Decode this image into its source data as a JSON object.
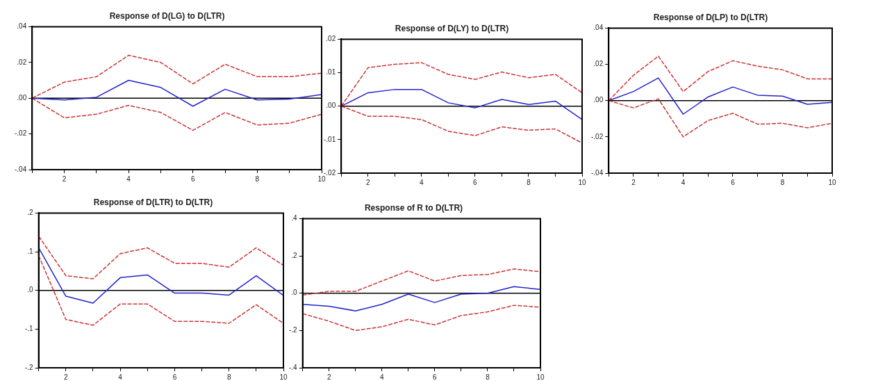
{
  "chart_data": [
    {
      "type": "line",
      "title": "Response of D(LG) to D(LTR)",
      "x": [
        1,
        2,
        3,
        4,
        5,
        6,
        7,
        8,
        9,
        10
      ],
      "xlim": [
        1,
        10
      ],
      "xticks": [
        {
          "value": 1,
          "label": null
        },
        2,
        {
          "value": 3,
          "label": null
        },
        4,
        {
          "value": 5,
          "label": null
        },
        6,
        {
          "value": 7,
          "label": null
        },
        8,
        {
          "value": 9,
          "label": null
        },
        10
      ],
      "ylim": [
        -0.04,
        0.04
      ],
      "yticks": [
        {
          "value": -0.04,
          "label": "-.04"
        },
        {
          "value": -0.02,
          "label": "-.02"
        },
        {
          "value": 0,
          "label": ".00"
        },
        {
          "value": 0.02,
          "label": ".02"
        },
        {
          "value": 0.04,
          "label": ".04"
        }
      ],
      "series": [
        {
          "color": "#cc3333",
          "line_style": "dashed",
          "values": [
            0,
            0.009,
            0.012,
            0.024,
            0.02,
            0.008,
            0.019,
            0.012,
            0.012,
            0.014
          ]
        },
        {
          "color": "#2222cc",
          "line_style": "solid",
          "values": [
            0,
            -0.001,
            0.0005,
            0.01,
            0.006,
            -0.0045,
            0.005,
            -0.001,
            -0.0005,
            0.002
          ]
        },
        {
          "color": "#cc3333",
          "line_style": "dashed",
          "values": [
            0,
            -0.011,
            -0.009,
            -0.004,
            -0.008,
            -0.018,
            -0.008,
            -0.015,
            -0.014,
            -0.009
          ]
        }
      ],
      "ref_lines": [
        {
          "axis": "y",
          "value": 0,
          "color": "#000000"
        }
      ],
      "grid": false,
      "legend": false,
      "marker": "none"
    },
    {
      "type": "line",
      "title": "Response of D(LY) to D(LTR)",
      "x": [
        1,
        2,
        3,
        4,
        5,
        6,
        7,
        8,
        9,
        10
      ],
      "xlim": [
        1,
        10
      ],
      "xticks": [
        {
          "value": 1,
          "label": null
        },
        2,
        {
          "value": 3,
          "label": null
        },
        4,
        {
          "value": 5,
          "label": null
        },
        6,
        {
          "value": 7,
          "label": null
        },
        8,
        {
          "value": 9,
          "label": null
        },
        10
      ],
      "ylim": [
        -0.02,
        0.02
      ],
      "yticks": [
        {
          "value": -0.02,
          "label": "-.02"
        },
        {
          "value": -0.01,
          "label": "-.01"
        },
        {
          "value": 0,
          "label": ".00"
        },
        {
          "value": 0.01,
          "label": ".01"
        },
        {
          "value": 0.02,
          "label": ".02"
        }
      ],
      "series": [
        {
          "color": "#cc3333",
          "line_style": "dashed",
          "values": [
            0,
            0.0115,
            0.0125,
            0.013,
            0.0095,
            0.008,
            0.0102,
            0.0085,
            0.0095,
            0.004
          ]
        },
        {
          "color": "#2222cc",
          "line_style": "solid",
          "values": [
            0,
            0.004,
            0.005,
            0.005,
            0.001,
            -0.0005,
            0.002,
            0.0005,
            0.0015,
            -0.004
          ]
        },
        {
          "color": "#cc3333",
          "line_style": "dashed",
          "values": [
            0,
            -0.003,
            -0.003,
            -0.004,
            -0.0075,
            -0.0088,
            -0.0062,
            -0.0072,
            -0.0068,
            -0.011
          ]
        }
      ],
      "ref_lines": [
        {
          "axis": "y",
          "value": 0,
          "color": "#000000"
        }
      ],
      "grid": false,
      "legend": false,
      "marker": "none"
    },
    {
      "type": "line",
      "title": "Response of D(LP) to D(LTR)",
      "x": [
        1,
        2,
        3,
        4,
        5,
        6,
        7,
        8,
        9,
        10
      ],
      "xlim": [
        1,
        10
      ],
      "xticks": [
        {
          "value": 1,
          "label": null
        },
        2,
        {
          "value": 3,
          "label": null
        },
        4,
        {
          "value": 5,
          "label": null
        },
        6,
        {
          "value": 7,
          "label": null
        },
        8,
        {
          "value": 9,
          "label": null
        },
        10
      ],
      "ylim": [
        -0.04,
        0.04
      ],
      "yticks": [
        {
          "value": -0.04,
          "label": "-.04"
        },
        {
          "value": -0.02,
          "label": "-.02"
        },
        {
          "value": 0,
          "label": ".00"
        },
        {
          "value": 0.02,
          "label": ".02"
        },
        {
          "value": 0.04,
          "label": ".04"
        }
      ],
      "series": [
        {
          "color": "#cc3333",
          "line_style": "dashed",
          "values": [
            0,
            0.014,
            0.0245,
            0.005,
            0.016,
            0.022,
            0.019,
            0.017,
            0.012,
            0.012
          ]
        },
        {
          "color": "#2222cc",
          "line_style": "solid",
          "values": [
            0,
            0.005,
            0.0125,
            -0.0075,
            0.002,
            0.0075,
            0.003,
            0.0025,
            -0.002,
            -0.001
          ]
        },
        {
          "color": "#cc3333",
          "line_style": "dashed",
          "values": [
            0,
            -0.004,
            0.001,
            -0.02,
            -0.011,
            -0.007,
            -0.013,
            -0.0125,
            -0.015,
            -0.0125
          ]
        }
      ],
      "ref_lines": [
        {
          "axis": "y",
          "value": 0,
          "color": "#000000"
        }
      ],
      "grid": false,
      "legend": false,
      "marker": "none"
    },
    {
      "type": "line",
      "title": "Response of D(LTR) to D(LTR)",
      "x": [
        1,
        2,
        3,
        4,
        5,
        6,
        7,
        8,
        9,
        10
      ],
      "xlim": [
        1,
        10
      ],
      "xticks": [
        {
          "value": 1,
          "label": null
        },
        2,
        {
          "value": 3,
          "label": null
        },
        4,
        {
          "value": 5,
          "label": null
        },
        6,
        {
          "value": 7,
          "label": null
        },
        8,
        {
          "value": 9,
          "label": null
        },
        10
      ],
      "ylim": [
        -0.2,
        0.2
      ],
      "yticks": [
        {
          "value": -0.2,
          "label": "-.2"
        },
        {
          "value": -0.1,
          "label": "-.1"
        },
        {
          "value": 0,
          "label": ".0"
        },
        {
          "value": 0.1,
          "label": ".1"
        },
        {
          "value": 0.2,
          "label": ".2"
        }
      ],
      "series": [
        {
          "color": "#cc3333",
          "line_style": "dashed",
          "values": [
            0.14,
            0.038,
            0.03,
            0.095,
            0.11,
            0.07,
            0.07,
            0.06,
            0.11,
            0.065
          ]
        },
        {
          "color": "#2222cc",
          "line_style": "solid",
          "values": [
            0.11,
            -0.015,
            -0.033,
            0.033,
            0.04,
            -0.007,
            -0.007,
            -0.012,
            0.038,
            -0.013
          ]
        },
        {
          "color": "#cc3333",
          "line_style": "dashed",
          "values": [
            0.09,
            -0.075,
            -0.09,
            -0.035,
            -0.035,
            -0.08,
            -0.08,
            -0.085,
            -0.037,
            -0.085
          ]
        }
      ],
      "ref_lines": [
        {
          "axis": "y",
          "value": 0,
          "color": "#000000"
        }
      ],
      "grid": false,
      "legend": false,
      "marker": "none"
    },
    {
      "type": "line",
      "title": "Response of R to D(LTR)",
      "x": [
        1,
        2,
        3,
        4,
        5,
        6,
        7,
        8,
        9,
        10
      ],
      "xlim": [
        1,
        10
      ],
      "xticks": [
        {
          "value": 1,
          "label": null
        },
        2,
        {
          "value": 3,
          "label": null
        },
        4,
        {
          "value": 5,
          "label": null
        },
        6,
        {
          "value": 7,
          "label": null
        },
        8,
        {
          "value": 9,
          "label": null
        },
        10
      ],
      "ylim": [
        -0.4,
        0.4
      ],
      "yticks": [
        {
          "value": -0.4,
          "label": "-.4"
        },
        {
          "value": -0.2,
          "label": "-.2"
        },
        {
          "value": 0,
          "label": ".0"
        },
        {
          "value": 0.2,
          "label": ".2"
        },
        {
          "value": 0.4,
          "label": ".4"
        }
      ],
      "series": [
        {
          "color": "#cc3333",
          "line_style": "dashed",
          "values": [
            -0.01,
            0.01,
            0.01,
            0.065,
            0.12,
            0.065,
            0.095,
            0.1,
            0.13,
            0.115
          ]
        },
        {
          "color": "#2222cc",
          "line_style": "solid",
          "values": [
            -0.06,
            -0.07,
            -0.095,
            -0.06,
            -0.005,
            -0.05,
            -0.005,
            0,
            0.035,
            0.02
          ]
        },
        {
          "color": "#cc3333",
          "line_style": "dashed",
          "values": [
            -0.11,
            -0.15,
            -0.2,
            -0.18,
            -0.14,
            -0.17,
            -0.12,
            -0.1,
            -0.065,
            -0.075
          ]
        }
      ],
      "ref_lines": [
        {
          "axis": "y",
          "value": 0,
          "color": "#000000"
        }
      ],
      "grid": false,
      "legend": false,
      "marker": "none"
    }
  ]
}
